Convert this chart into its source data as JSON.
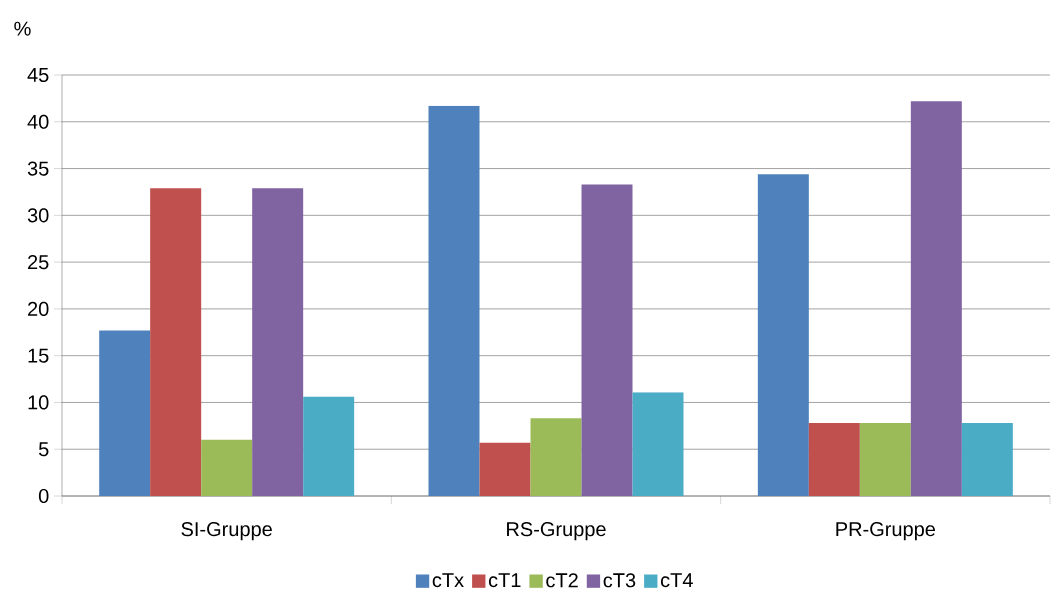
{
  "chart_data": {
    "type": "bar",
    "ylabel": "%",
    "categories": [
      "SI-Gruppe",
      "RS-Gruppe",
      "PR-Gruppe"
    ],
    "series": [
      {
        "name": "cTx",
        "color": "#4f81bd",
        "values": [
          17.7,
          41.7,
          34.4
        ]
      },
      {
        "name": "cT1",
        "color": "#c0504d",
        "values": [
          32.9,
          5.7,
          7.8
        ]
      },
      {
        "name": "cT2",
        "color": "#9bbb59",
        "values": [
          6.0,
          8.3,
          7.8
        ]
      },
      {
        "name": "cT3",
        "color": "#8064a2",
        "values": [
          32.9,
          33.3,
          42.2
        ]
      },
      {
        "name": "cT4",
        "color": "#4bacc6",
        "values": [
          10.6,
          11.1,
          7.8
        ]
      }
    ],
    "ylim": [
      0,
      45
    ],
    "yticks": [
      0,
      5,
      10,
      15,
      20,
      25,
      30,
      35,
      40,
      45
    ],
    "grid": "y",
    "legend": "bottom"
  }
}
